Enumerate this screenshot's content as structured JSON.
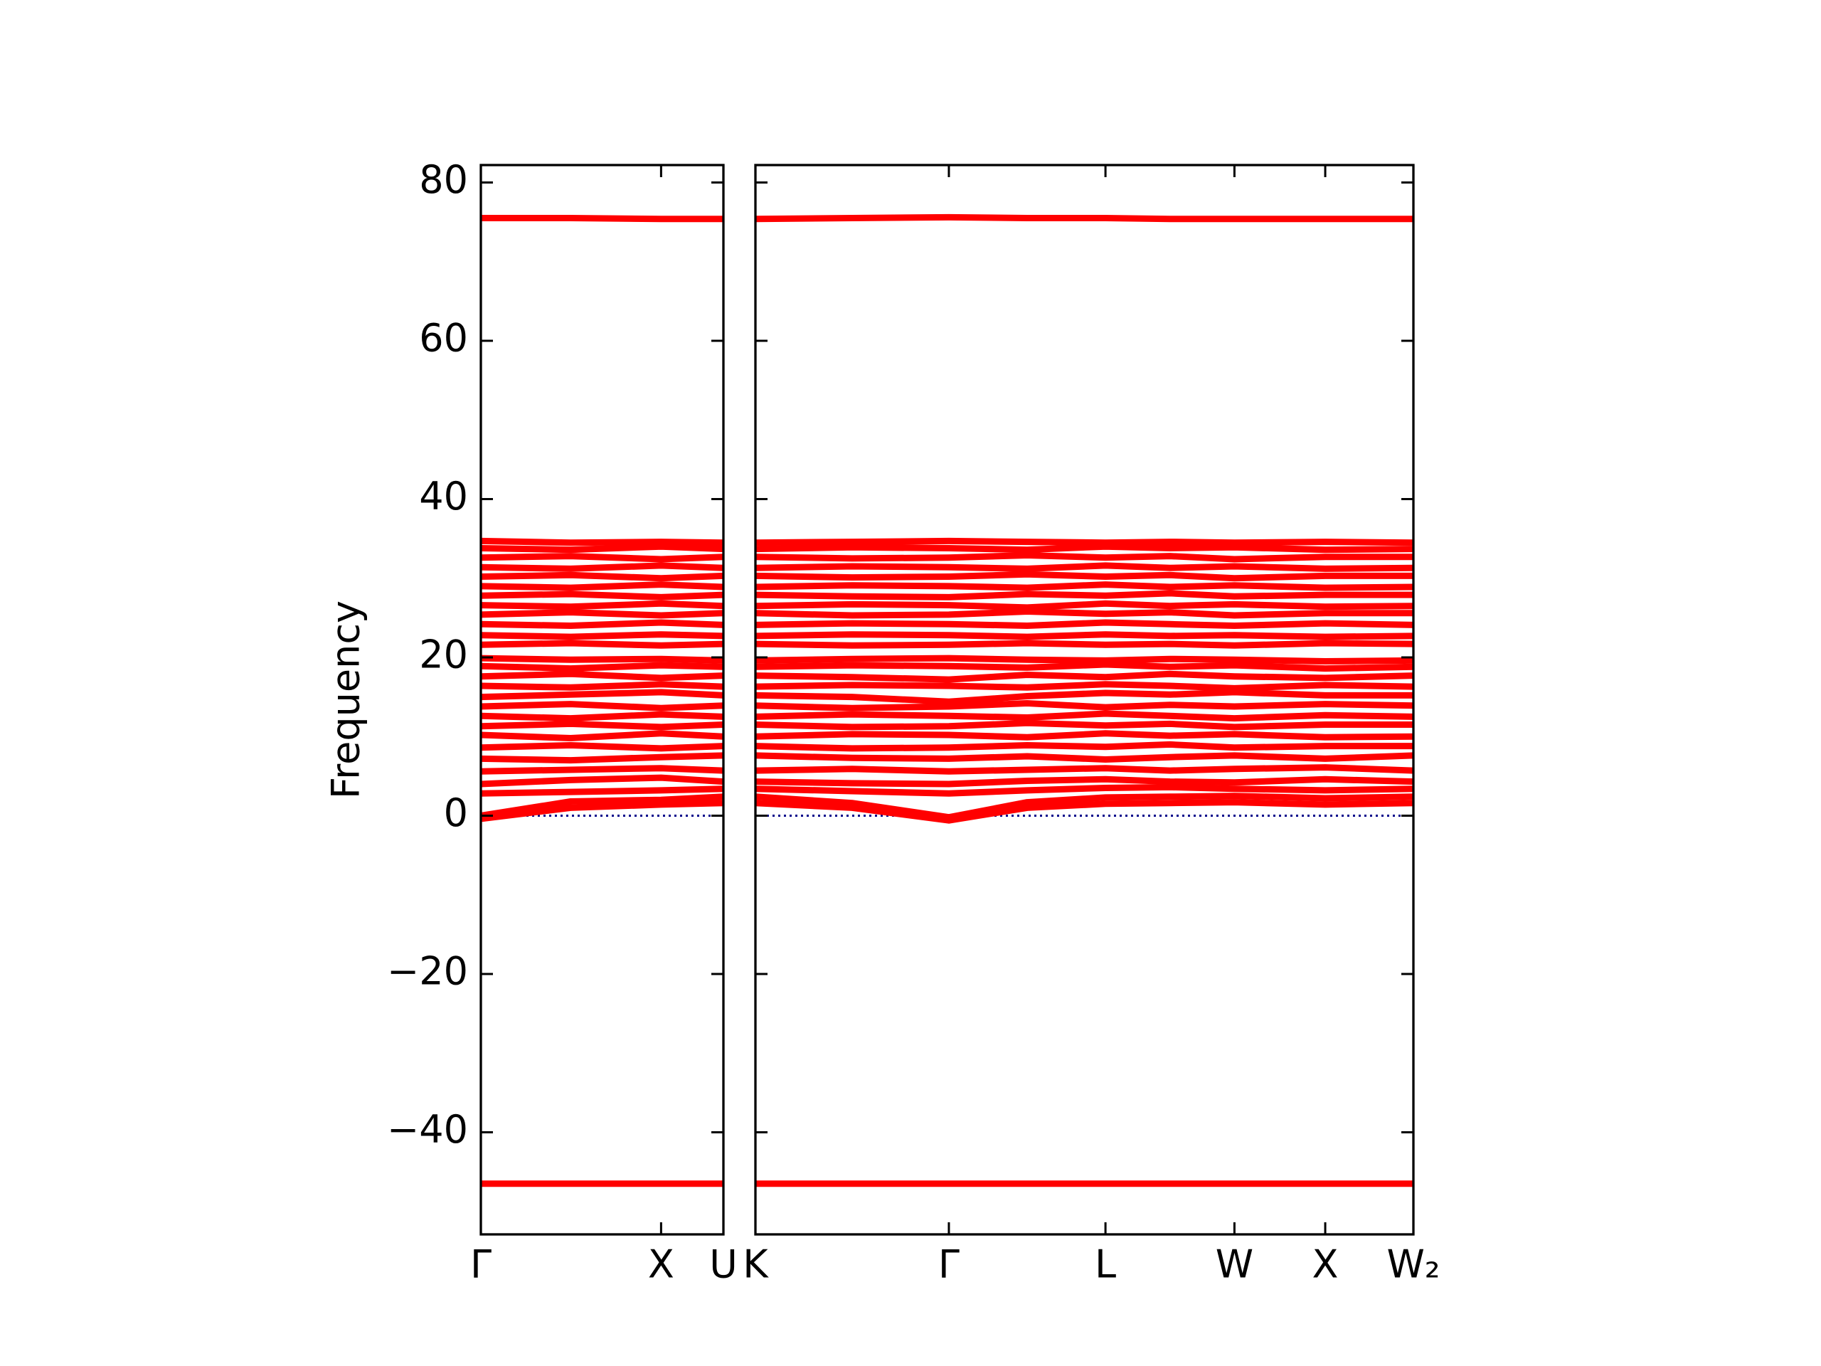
{
  "chart_data": [
    {
      "type": "line",
      "ylabel": "Frequency",
      "color": "#ff0000",
      "zero_line": true,
      "zero_line_color": "#00008b",
      "x": [
        0,
        0.37,
        0.743,
        1.0
      ],
      "xlim": [
        0,
        1.0
      ],
      "xticks": [
        {
          "value": 0,
          "label": "Γ"
        },
        {
          "value": 0.743,
          "label": "X"
        },
        {
          "value": 1.0,
          "label": "U"
        }
      ],
      "ylim": [
        -52.9,
        82.2
      ],
      "yticks": [
        {
          "value": -40,
          "label": "−40"
        },
        {
          "value": -20,
          "label": "−20"
        },
        0,
        20,
        40,
        60,
        80
      ],
      "series": [
        {
          "values": [
            -46.5,
            -46.5,
            -46.5,
            -46.5
          ]
        },
        {
          "values": [
            -0.4,
            1.0,
            1.4,
            1.6
          ]
        },
        {
          "values": [
            0,
            1.8,
            2.0,
            2.4
          ]
        },
        {
          "values": [
            2.8,
            3.0,
            3.2,
            3.4
          ]
        },
        {
          "values": [
            4.0,
            4.5,
            4.8,
            4.3
          ]
        },
        {
          "values": [
            5.6,
            5.8,
            6.0,
            5.7
          ]
        },
        {
          "values": [
            7.2,
            7.0,
            7.4,
            7.6
          ]
        },
        {
          "values": [
            8.6,
            8.9,
            8.5,
            8.8
          ]
        },
        {
          "values": [
            10.2,
            9.8,
            10.4,
            10.0
          ]
        },
        {
          "values": [
            11.3,
            11.6,
            11.2,
            11.5
          ]
        },
        {
          "values": [
            12.6,
            12.3,
            12.8,
            12.5
          ]
        },
        {
          "values": [
            13.8,
            14.1,
            13.6,
            13.9
          ]
        },
        {
          "values": [
            15.0,
            15.3,
            15.6,
            15.2
          ]
        },
        {
          "values": [
            16.4,
            16.2,
            16.6,
            16.3
          ]
        },
        {
          "values": [
            17.6,
            17.9,
            17.4,
            17.7
          ]
        },
        {
          "values": [
            18.9,
            18.6,
            19.0,
            18.8
          ]
        },
        {
          "values": [
            19.9,
            19.7,
            19.8,
            19.6
          ]
        },
        {
          "values": [
            21.6,
            21.8,
            21.5,
            21.7
          ]
        },
        {
          "values": [
            22.8,
            22.6,
            22.9,
            22.7
          ]
        },
        {
          "values": [
            24.2,
            24.0,
            24.4,
            24.1
          ]
        },
        {
          "values": [
            25.4,
            25.7,
            25.3,
            25.6
          ]
        },
        {
          "values": [
            26.6,
            26.4,
            26.8,
            26.5
          ]
        },
        {
          "values": [
            27.8,
            28.0,
            27.6,
            27.9
          ]
        },
        {
          "values": [
            29.0,
            28.8,
            29.2,
            28.9
          ]
        },
        {
          "values": [
            30.2,
            30.4,
            30.0,
            30.3
          ]
        },
        {
          "values": [
            31.4,
            31.2,
            31.6,
            31.3
          ]
        },
        {
          "values": [
            32.6,
            32.8,
            32.4,
            32.7
          ]
        },
        {
          "values": [
            33.8,
            33.6,
            34.0,
            33.7
          ]
        },
        {
          "values": [
            34.7,
            34.5,
            34.6,
            34.5
          ]
        },
        {
          "values": [
            75.5,
            75.5,
            75.4,
            75.4
          ]
        }
      ]
    },
    {
      "type": "line",
      "color": "#ff0000",
      "zero_line": true,
      "zero_line_color": "#00008b",
      "x": [
        0,
        0.147,
        0.294,
        0.413,
        0.532,
        0.63,
        0.728,
        0.866,
        1.0
      ],
      "xlim": [
        0,
        1.0
      ],
      "xticks": [
        {
          "value": 0,
          "label": "K"
        },
        {
          "value": 0.294,
          "label": "Γ"
        },
        {
          "value": 0.532,
          "label": "L"
        },
        {
          "value": 0.728,
          "label": "W"
        },
        {
          "value": 0.866,
          "label": "X"
        },
        {
          "value": 1.0,
          "label": "W₂"
        }
      ],
      "ylim": [
        -52.9,
        82.2
      ],
      "yticks": [
        -40,
        -20,
        0,
        20,
        40,
        60,
        80
      ],
      "series": [
        {
          "values": [
            -46.5,
            -46.5,
            -46.5,
            -46.5,
            -46.5,
            -46.5,
            -46.5,
            -46.5,
            -46.5
          ]
        },
        {
          "values": [
            1.6,
            1.0,
            -0.6,
            1.0,
            1.5,
            1.6,
            1.7,
            1.4,
            1.6
          ]
        },
        {
          "values": [
            2.4,
            1.6,
            -0.2,
            1.7,
            2.3,
            2.4,
            2.5,
            2.2,
            2.4
          ]
        },
        {
          "values": [
            3.4,
            3.1,
            2.8,
            3.2,
            3.5,
            3.6,
            3.4,
            3.2,
            3.4
          ]
        },
        {
          "values": [
            4.3,
            4.1,
            4.0,
            4.4,
            4.6,
            4.3,
            4.2,
            4.6,
            4.3
          ]
        },
        {
          "values": [
            5.7,
            5.9,
            5.6,
            5.8,
            6.0,
            5.7,
            5.9,
            6.1,
            5.7
          ]
        },
        {
          "values": [
            7.6,
            7.3,
            7.2,
            7.5,
            7.1,
            7.4,
            7.6,
            7.2,
            7.6
          ]
        },
        {
          "values": [
            8.8,
            8.5,
            8.6,
            8.9,
            8.7,
            9.0,
            8.6,
            8.8,
            8.8
          ]
        },
        {
          "values": [
            10.0,
            10.3,
            10.2,
            9.9,
            10.4,
            10.1,
            10.3,
            9.9,
            10.0
          ]
        },
        {
          "values": [
            11.5,
            11.2,
            11.3,
            11.7,
            11.4,
            11.6,
            11.2,
            11.5,
            11.5
          ]
        },
        {
          "values": [
            12.5,
            12.8,
            12.6,
            12.4,
            12.9,
            12.6,
            12.3,
            12.7,
            12.5
          ]
        },
        {
          "values": [
            13.9,
            13.6,
            13.8,
            14.2,
            13.7,
            14.0,
            13.8,
            14.1,
            13.9
          ]
        },
        {
          "values": [
            15.2,
            15.0,
            14.4,
            15.1,
            15.5,
            15.3,
            15.6,
            15.2,
            15.2
          ]
        },
        {
          "values": [
            16.3,
            16.5,
            16.4,
            16.2,
            16.6,
            16.4,
            16.1,
            16.5,
            16.3
          ]
        },
        {
          "values": [
            17.7,
            17.5,
            17.2,
            17.8,
            17.5,
            17.9,
            17.6,
            17.4,
            17.7
          ]
        },
        {
          "values": [
            18.8,
            19.0,
            18.9,
            18.7,
            19.1,
            18.8,
            19.0,
            18.6,
            18.8
          ]
        },
        {
          "values": [
            19.6,
            19.8,
            19.9,
            19.7,
            19.6,
            19.8,
            19.7,
            19.5,
            19.6
          ]
        },
        {
          "values": [
            21.7,
            21.5,
            21.6,
            21.8,
            21.6,
            21.7,
            21.5,
            21.8,
            21.7
          ]
        },
        {
          "values": [
            22.7,
            22.9,
            22.8,
            22.6,
            22.9,
            22.7,
            22.8,
            22.6,
            22.7
          ]
        },
        {
          "values": [
            24.1,
            24.3,
            24.2,
            24.0,
            24.4,
            24.2,
            24.0,
            24.3,
            24.1
          ]
        },
        {
          "values": [
            25.6,
            25.3,
            25.4,
            25.8,
            25.5,
            25.7,
            25.3,
            25.6,
            25.6
          ]
        },
        {
          "values": [
            26.5,
            26.7,
            26.6,
            26.3,
            26.8,
            26.5,
            26.7,
            26.4,
            26.5
          ]
        },
        {
          "values": [
            27.9,
            27.7,
            27.6,
            28.0,
            27.8,
            28.1,
            27.7,
            27.9,
            27.9
          ]
        },
        {
          "values": [
            28.9,
            29.1,
            29.0,
            28.8,
            29.2,
            28.9,
            29.1,
            28.8,
            28.9
          ]
        },
        {
          "values": [
            30.3,
            30.1,
            30.2,
            30.5,
            30.2,
            30.4,
            30.0,
            30.3,
            30.3
          ]
        },
        {
          "values": [
            31.3,
            31.5,
            31.4,
            31.2,
            31.6,
            31.3,
            31.5,
            31.2,
            31.3
          ]
        },
        {
          "values": [
            32.7,
            32.5,
            32.6,
            32.9,
            32.6,
            32.8,
            32.4,
            32.7,
            32.7
          ]
        },
        {
          "values": [
            33.7,
            33.9,
            33.8,
            33.6,
            34.0,
            33.8,
            33.9,
            33.6,
            33.7
          ]
        },
        {
          "values": [
            34.5,
            34.6,
            34.7,
            34.6,
            34.5,
            34.6,
            34.5,
            34.6,
            34.5
          ]
        },
        {
          "values": [
            75.4,
            75.5,
            75.6,
            75.5,
            75.5,
            75.4,
            75.4,
            75.4,
            75.4
          ]
        }
      ]
    }
  ]
}
